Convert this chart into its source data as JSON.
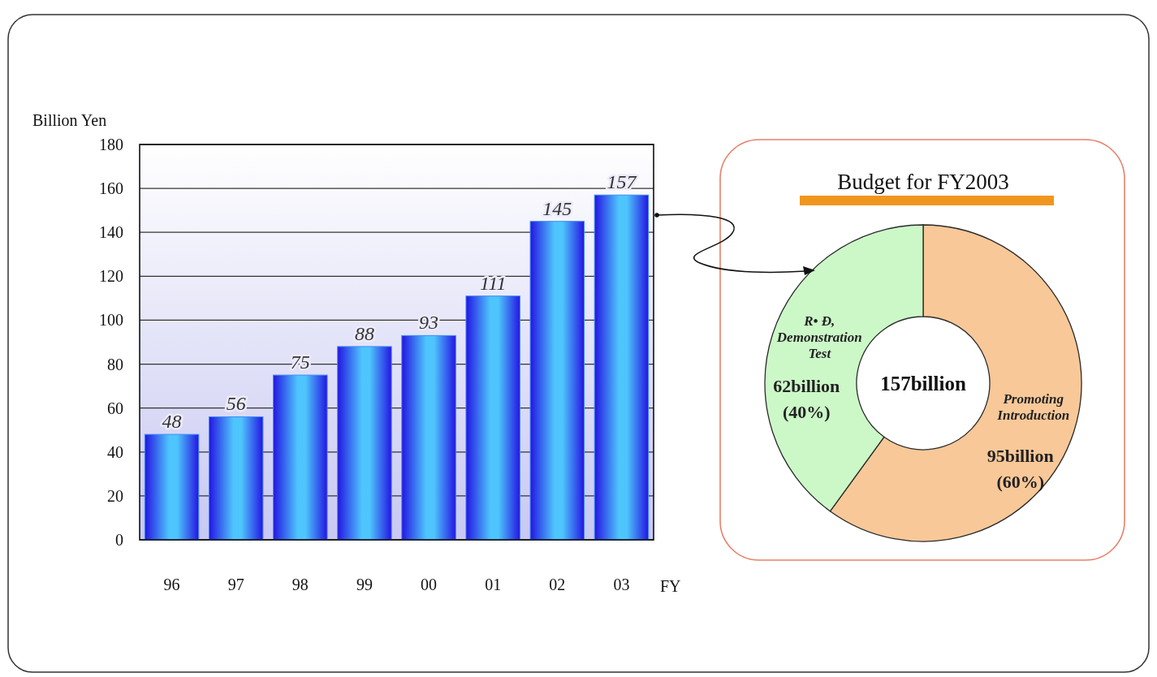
{
  "chart_data": [
    {
      "type": "bar",
      "categories": [
        "96",
        "97",
        "98",
        "99",
        "00",
        "01",
        "02",
        "03"
      ],
      "values": [
        48,
        56,
        75,
        88,
        93,
        111,
        145,
        157
      ],
      "color": "#3d8cf6",
      "ylim": [
        0,
        180
      ],
      "yticks": [
        0,
        20,
        40,
        60,
        80,
        100,
        120,
        140,
        160,
        180
      ],
      "grid": "y",
      "data_labels": true,
      "xlabel": "FY",
      "ylabel": "Billion Yen"
    },
    {
      "type": "donut",
      "title": "Budget for FY2003",
      "categories": [
        "Promoting\nIntroduction",
        "R• Đ,\nDemonstration\nTest"
      ],
      "values": [
        60,
        40
      ],
      "colors": [
        "#f8c898",
        "#ccf8c8"
      ],
      "value_labels": [
        "95billion\n(60%)",
        "62billion\n(40%)"
      ],
      "annotations": [
        "157billion"
      ]
    }
  ]
}
